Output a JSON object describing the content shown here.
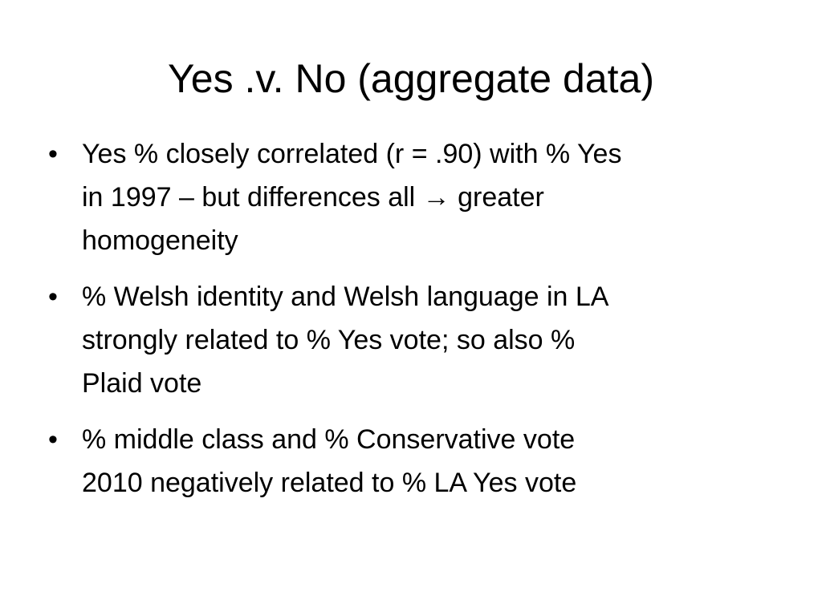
{
  "title": "Yes .v. No (aggregate data)",
  "bullets": [
    {
      "lines": [
        "Yes % closely correlated (r = .90) with % Yes",
        "in 1997 – but differences  all → greater",
        "homogeneity"
      ]
    },
    {
      "lines": [
        "% Welsh identity and Welsh language in LA",
        "strongly related to % Yes vote; so also %",
        "Plaid vote"
      ]
    },
    {
      "lines": [
        "% middle class and % Conservative vote",
        "2010 negatively related to % LA Yes vote"
      ]
    }
  ]
}
